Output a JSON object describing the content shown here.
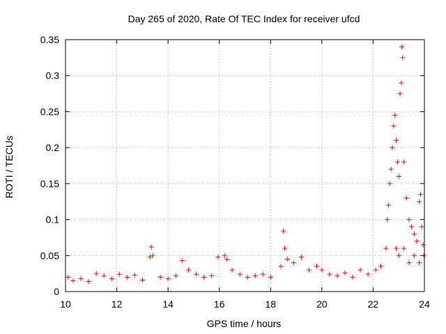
{
  "chart_data": {
    "type": "scatter",
    "title": "Day 265 of 2020, Rate Of TEC Index for receiver ufcd",
    "xlabel": "GPS time / hours",
    "ylabel": "ROTI / TECUs",
    "xlim": [
      10,
      24
    ],
    "ylim": [
      0,
      0.35
    ],
    "xticks": [
      "10",
      "12",
      "14",
      "16",
      "18",
      "20",
      "22",
      "24"
    ],
    "yticks": [
      "0",
      "0.05",
      "0.1",
      "0.15",
      "0.2",
      "0.25",
      "0.3",
      "0.35"
    ],
    "grid": true,
    "marker": "plus",
    "color": "#ff0000",
    "points": [
      [
        10.1,
        0.02
      ],
      [
        10.3,
        0.015
      ],
      [
        10.6,
        0.018
      ],
      [
        10.9,
        0.014
      ],
      [
        11.2,
        0.025
      ],
      [
        11.5,
        0.022
      ],
      [
        11.8,
        0.018
      ],
      [
        12.1,
        0.024
      ],
      [
        12.4,
        0.02
      ],
      [
        12.7,
        0.023
      ],
      [
        13.0,
        0.016
      ],
      [
        13.3,
        0.048
      ],
      [
        13.35,
        0.062
      ],
      [
        13.4,
        0.05
      ],
      [
        13.7,
        0.02
      ],
      [
        14.0,
        0.018
      ],
      [
        14.3,
        0.022
      ],
      [
        14.55,
        0.043
      ],
      [
        14.8,
        0.03
      ],
      [
        15.1,
        0.024
      ],
      [
        15.4,
        0.02
      ],
      [
        15.7,
        0.022
      ],
      [
        15.95,
        0.048
      ],
      [
        16.2,
        0.05
      ],
      [
        16.3,
        0.045
      ],
      [
        16.5,
        0.03
      ],
      [
        16.8,
        0.024
      ],
      [
        17.1,
        0.02
      ],
      [
        17.4,
        0.022
      ],
      [
        17.7,
        0.024
      ],
      [
        18.0,
        0.02
      ],
      [
        18.4,
        0.035
      ],
      [
        18.5,
        0.084
      ],
      [
        18.55,
        0.06
      ],
      [
        18.65,
        0.045
      ],
      [
        18.9,
        0.04
      ],
      [
        19.2,
        0.048
      ],
      [
        19.5,
        0.03
      ],
      [
        19.8,
        0.035
      ],
      [
        20.0,
        0.03
      ],
      [
        20.3,
        0.024
      ],
      [
        20.6,
        0.022
      ],
      [
        20.9,
        0.026
      ],
      [
        21.2,
        0.02
      ],
      [
        21.5,
        0.03
      ],
      [
        21.8,
        0.024
      ],
      [
        22.1,
        0.03
      ],
      [
        22.3,
        0.035
      ],
      [
        22.5,
        0.06
      ],
      [
        22.55,
        0.1
      ],
      [
        22.6,
        0.12
      ],
      [
        22.65,
        0.15
      ],
      [
        22.7,
        0.17
      ],
      [
        22.75,
        0.2
      ],
      [
        22.8,
        0.23
      ],
      [
        22.85,
        0.245
      ],
      [
        22.9,
        0.21
      ],
      [
        22.95,
        0.18
      ],
      [
        23.0,
        0.16
      ],
      [
        23.05,
        0.275
      ],
      [
        23.1,
        0.29
      ],
      [
        23.12,
        0.34
      ],
      [
        23.15,
        0.325
      ],
      [
        23.2,
        0.18
      ],
      [
        23.3,
        0.13
      ],
      [
        23.4,
        0.1
      ],
      [
        23.5,
        0.09
      ],
      [
        23.6,
        0.08
      ],
      [
        23.7,
        0.07
      ],
      [
        23.8,
        0.125
      ],
      [
        23.85,
        0.135
      ],
      [
        23.9,
        0.09
      ],
      [
        23.95,
        0.065
      ],
      [
        23.98,
        0.05
      ],
      [
        22.9,
        0.06
      ],
      [
        23.0,
        0.05
      ],
      [
        23.2,
        0.06
      ],
      [
        23.4,
        0.04
      ],
      [
        23.6,
        0.05
      ],
      [
        23.8,
        0.04
      ]
    ]
  }
}
